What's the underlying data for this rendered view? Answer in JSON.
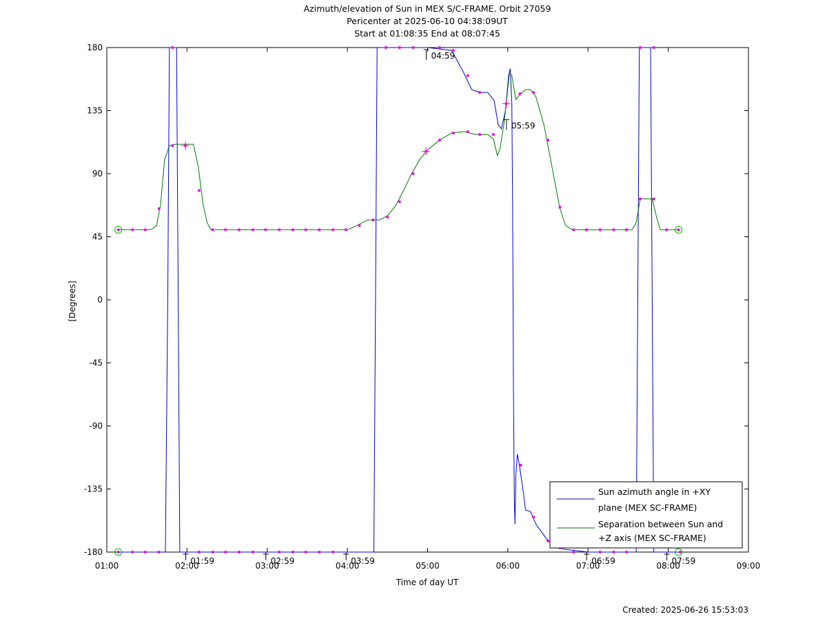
{
  "chart_data": {
    "type": "line",
    "title_lines": [
      "Azimuth/elevation of Sun in MEX S/C-FRAME.  Orbit 27059",
      "Pericenter at 2025-06-10 04:38:09UT",
      "Start at 01:08:35 End at 08:07:45"
    ],
    "xlabel": "Time of day UT",
    "ylabel": "[Degrees]",
    "created": "Created: 2025-06-26 15:53:03",
    "x_ticks": [
      "01:00",
      "02:00",
      "03:00",
      "04:00",
      "05:00",
      "06:00",
      "07:00",
      "08:00",
      "09:00"
    ],
    "y_ticks": [
      "180",
      "135",
      "90",
      "45",
      "0",
      "-45",
      "-90",
      "-135",
      "-180"
    ],
    "xlim_hours": [
      1,
      9
    ],
    "ylim": [
      -180,
      180
    ],
    "grid": false,
    "legend_position": "bottom-right",
    "time_annotations": [
      {
        "label": "01:59",
        "t": 1.983,
        "y": -180
      },
      {
        "label": "02:59",
        "t": 2.983,
        "y": -180
      },
      {
        "label": "03:59",
        "t": 3.983,
        "y": -180
      },
      {
        "label": "04:59",
        "t": 4.983,
        "y": 180
      },
      {
        "label": "05:59",
        "t": 5.983,
        "y": 130
      },
      {
        "label": "06:59",
        "t": 6.983,
        "y": -180
      },
      {
        "label": "07:59",
        "t": 7.983,
        "y": -180
      }
    ],
    "series": [
      {
        "name": "Sun azimuth angle in +XY plane (MEX SC-FRAME)",
        "legend_lines": [
          "Sun azimuth angle in +XY",
          "plane (MEX SC-FRAME)"
        ],
        "color": "#0000cc",
        "points": [
          [
            1.143,
            -180
          ],
          [
            1.5,
            -180
          ],
          [
            1.73,
            -180
          ],
          [
            1.76,
            0
          ],
          [
            1.78,
            180
          ],
          [
            1.87,
            180
          ],
          [
            1.89,
            0
          ],
          [
            1.91,
            -180
          ],
          [
            2.5,
            -180
          ],
          [
            3.5,
            -180
          ],
          [
            4.0,
            -180
          ],
          [
            4.33,
            -180
          ],
          [
            4.35,
            0
          ],
          [
            4.37,
            180
          ],
          [
            4.6,
            180
          ],
          [
            5.0,
            180
          ],
          [
            5.3,
            178
          ],
          [
            5.45,
            162
          ],
          [
            5.55,
            150
          ],
          [
            5.65,
            148
          ],
          [
            5.75,
            148
          ],
          [
            5.83,
            142
          ],
          [
            5.88,
            125
          ],
          [
            5.92,
            122
          ],
          [
            5.97,
            135
          ],
          [
            6.01,
            160
          ],
          [
            6.03,
            165
          ],
          [
            6.05,
            140
          ],
          [
            6.06,
            60
          ],
          [
            6.07,
            -60
          ],
          [
            6.08,
            -140
          ],
          [
            6.09,
            -160
          ],
          [
            6.1,
            -125
          ],
          [
            6.12,
            -110
          ],
          [
            6.15,
            -120
          ],
          [
            6.2,
            -140
          ],
          [
            6.22,
            -150
          ],
          [
            6.28,
            -151
          ],
          [
            6.35,
            -160
          ],
          [
            6.5,
            -172
          ],
          [
            6.7,
            -178
          ],
          [
            7.0,
            -180
          ],
          [
            7.6,
            -180
          ],
          [
            7.62,
            0
          ],
          [
            7.64,
            180
          ],
          [
            7.78,
            180
          ],
          [
            7.8,
            0
          ],
          [
            7.82,
            -180
          ],
          [
            8.129,
            -180
          ]
        ],
        "markers": [
          [
            1.143,
            -180
          ],
          [
            1.32,
            -180
          ],
          [
            1.48,
            -180
          ],
          [
            1.65,
            -180
          ],
          [
            1.82,
            180
          ],
          [
            2.15,
            -180
          ],
          [
            2.32,
            -180
          ],
          [
            2.48,
            -180
          ],
          [
            2.65,
            -180
          ],
          [
            2.82,
            -180
          ],
          [
            3.15,
            -180
          ],
          [
            3.32,
            -180
          ],
          [
            3.48,
            -180
          ],
          [
            3.65,
            -180
          ],
          [
            3.82,
            -180
          ],
          [
            4.48,
            180
          ],
          [
            4.65,
            180
          ],
          [
            4.82,
            180
          ],
          [
            5.15,
            180
          ],
          [
            5.32,
            178
          ],
          [
            5.5,
            160
          ],
          [
            5.65,
            148
          ],
          [
            6.16,
            -118
          ],
          [
            6.32,
            -155
          ],
          [
            6.5,
            -172
          ],
          [
            6.65,
            -177
          ],
          [
            6.82,
            -180
          ],
          [
            7.15,
            -180
          ],
          [
            7.32,
            -180
          ],
          [
            7.48,
            -180
          ],
          [
            7.65,
            180
          ],
          [
            7.82,
            180
          ],
          [
            8.15,
            -180
          ]
        ]
      },
      {
        "name": "Separation between Sun and +Z axis (MEX SC-FRAME)",
        "legend_lines": [
          "Separation between Sun and",
          "+Z axis (MEX SC-FRAME)"
        ],
        "color": "#007700",
        "points": [
          [
            1.143,
            50
          ],
          [
            1.55,
            50
          ],
          [
            1.62,
            53
          ],
          [
            1.67,
            68
          ],
          [
            1.72,
            100
          ],
          [
            1.78,
            110
          ],
          [
            1.85,
            111
          ],
          [
            2.08,
            111
          ],
          [
            2.14,
            95
          ],
          [
            2.2,
            68
          ],
          [
            2.25,
            55
          ],
          [
            2.3,
            50
          ],
          [
            3.5,
            50
          ],
          [
            4.0,
            50
          ],
          [
            4.12,
            53
          ],
          [
            4.25,
            57
          ],
          [
            4.4,
            57
          ],
          [
            4.5,
            60
          ],
          [
            4.6,
            67
          ],
          [
            4.7,
            78
          ],
          [
            4.8,
            90
          ],
          [
            4.9,
            100
          ],
          [
            5.0,
            107
          ],
          [
            5.15,
            114
          ],
          [
            5.3,
            119
          ],
          [
            5.45,
            120
          ],
          [
            5.6,
            118
          ],
          [
            5.75,
            118
          ],
          [
            5.82,
            115
          ],
          [
            5.87,
            103
          ],
          [
            5.9,
            107
          ],
          [
            5.95,
            125
          ],
          [
            5.98,
            140
          ],
          [
            6.02,
            162
          ],
          [
            6.05,
            160
          ],
          [
            6.1,
            143
          ],
          [
            6.16,
            147
          ],
          [
            6.22,
            150
          ],
          [
            6.28,
            150
          ],
          [
            6.35,
            145
          ],
          [
            6.45,
            125
          ],
          [
            6.55,
            95
          ],
          [
            6.65,
            65
          ],
          [
            6.72,
            53
          ],
          [
            6.8,
            50
          ],
          [
            7.0,
            50
          ],
          [
            7.55,
            50
          ],
          [
            7.6,
            55
          ],
          [
            7.65,
            72
          ],
          [
            7.8,
            72
          ],
          [
            7.85,
            60
          ],
          [
            7.9,
            50
          ],
          [
            8.129,
            50
          ]
        ],
        "markers": [
          [
            1.143,
            50
          ],
          [
            1.32,
            50
          ],
          [
            1.48,
            50
          ],
          [
            1.65,
            65
          ],
          [
            1.82,
            110
          ],
          [
            1.98,
            110
          ],
          [
            2.15,
            78
          ],
          [
            2.32,
            50
          ],
          [
            2.48,
            50
          ],
          [
            2.65,
            50
          ],
          [
            2.82,
            50
          ],
          [
            2.98,
            50
          ],
          [
            3.15,
            50
          ],
          [
            3.32,
            50
          ],
          [
            3.48,
            50
          ],
          [
            3.65,
            50
          ],
          [
            3.82,
            50
          ],
          [
            3.98,
            50
          ],
          [
            4.15,
            53
          ],
          [
            4.32,
            57
          ],
          [
            4.5,
            59
          ],
          [
            4.65,
            70
          ],
          [
            4.82,
            90
          ],
          [
            4.98,
            106
          ],
          [
            5.15,
            114
          ],
          [
            5.32,
            119
          ],
          [
            5.5,
            120
          ],
          [
            5.65,
            118
          ],
          [
            5.82,
            118
          ],
          [
            5.98,
            140
          ],
          [
            6.15,
            147
          ],
          [
            6.32,
            148
          ],
          [
            6.5,
            114
          ],
          [
            6.65,
            66
          ],
          [
            6.82,
            50
          ],
          [
            6.98,
            50
          ],
          [
            7.15,
            50
          ],
          [
            7.32,
            50
          ],
          [
            7.48,
            50
          ],
          [
            7.65,
            72
          ],
          [
            7.82,
            72
          ],
          [
            7.98,
            50
          ],
          [
            8.129,
            50
          ]
        ]
      }
    ]
  }
}
